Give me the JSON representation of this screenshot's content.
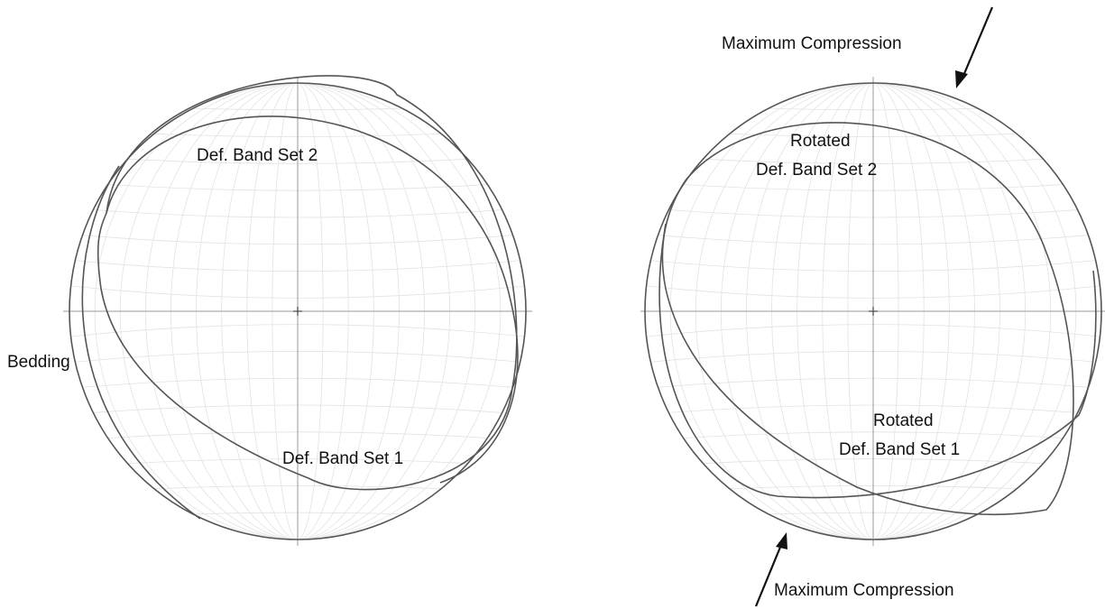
{
  "left_stereonet": {
    "labels": {
      "bedding": "Bedding",
      "band_set_2": "Def. Band Set 2",
      "band_set_1": "Def. Band Set 1"
    }
  },
  "right_stereonet": {
    "labels": {
      "band_set_2_line1": "Rotated",
      "band_set_2_line2": "Def. Band Set 2",
      "band_set_1_line1": "Rotated",
      "band_set_1_line2": "Def. Band Set 1",
      "compression_top": "Maximum Compression",
      "compression_bottom": "Maximum Compression"
    }
  },
  "colors": {
    "net_grid": "#e2e2e2",
    "great_circle": "#555555",
    "arrow": "#111111"
  }
}
